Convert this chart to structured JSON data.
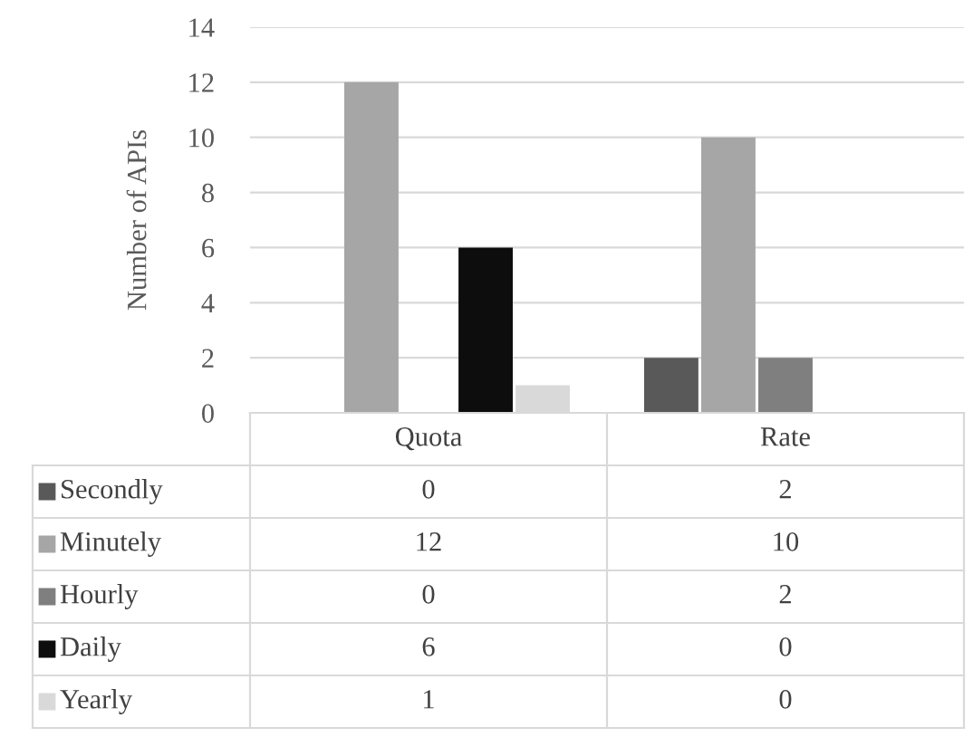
{
  "chart_data": {
    "type": "bar",
    "ylabel": "Number of APIs",
    "categories": [
      "Quota",
      "Rate"
    ],
    "series": [
      {
        "name": "Secondly",
        "color": "#595959",
        "values": [
          0,
          2
        ]
      },
      {
        "name": "Minutely",
        "color": "#a6a6a6",
        "values": [
          12,
          10
        ]
      },
      {
        "name": "Hourly",
        "color": "#7f7f7f",
        "values": [
          0,
          2
        ]
      },
      {
        "name": "Daily",
        "color": "#0d0d0d",
        "values": [
          6,
          0
        ]
      },
      {
        "name": "Yearly",
        "color": "#d9d9d9",
        "values": [
          1,
          0
        ]
      }
    ],
    "ylim": [
      0,
      14
    ],
    "yticks": [
      0,
      2,
      4,
      6,
      8,
      10,
      12,
      14
    ],
    "grid": "y",
    "data_labels": true,
    "legend": "bottom"
  }
}
